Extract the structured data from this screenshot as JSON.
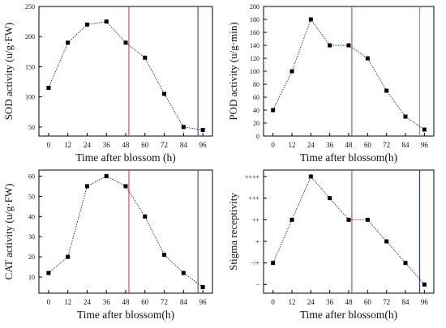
{
  "chart_data": [
    {
      "type": "line",
      "panel": "top-left",
      "x": [
        0,
        12,
        24,
        36,
        48,
        60,
        72,
        84,
        96
      ],
      "values": [
        115,
        190,
        220,
        225,
        190,
        165,
        105,
        50,
        45
      ],
      "xlim": [
        -6,
        102
      ],
      "ylim": [
        35,
        250
      ],
      "xticks": [
        0,
        12,
        24,
        36,
        48,
        60,
        72,
        84,
        96
      ],
      "yticks": [
        50,
        100,
        150,
        200,
        250
      ],
      "ytick_labels": [
        "50",
        "100",
        "150",
        "200",
        "250"
      ],
      "xlabel": "Time after  blossom (h)",
      "ylabel": "SOD activity (u/g·FW)",
      "vlines": [
        {
          "x": 50,
          "color": "#e34a4a"
        },
        {
          "x": 93,
          "color": "#3a4fcf"
        }
      ],
      "marker": "square",
      "line_style": "dotted",
      "grid": false
    },
    {
      "type": "line",
      "panel": "top-right",
      "x": [
        0,
        12,
        24,
        36,
        48,
        60,
        72,
        84,
        96
      ],
      "values": [
        40,
        100,
        180,
        140,
        140,
        120,
        70,
        30,
        10
      ],
      "xlim": [
        -6,
        102
      ],
      "ylim": [
        0,
        200
      ],
      "xticks": [
        0,
        12,
        24,
        36,
        48,
        60,
        72,
        84,
        96
      ],
      "yticks": [
        0,
        20,
        40,
        60,
        80,
        100,
        120,
        140,
        160,
        180,
        200
      ],
      "ytick_labels": [
        "0",
        "20",
        "40",
        "60",
        "80",
        "100",
        "120",
        "140",
        "160",
        "180",
        "200"
      ],
      "xlabel": "Time after blossom(h)",
      "ylabel": "POD activity (u/g·min)",
      "vlines": [
        {
          "x": 50,
          "color": "#e34a4a"
        },
        {
          "x": 93,
          "color": "#8b92d8"
        }
      ],
      "marker": "square",
      "line_style": "dotted",
      "grid": false
    },
    {
      "type": "line",
      "panel": "bottom-left",
      "x": [
        0,
        12,
        24,
        36,
        48,
        60,
        72,
        84,
        96
      ],
      "values": [
        12,
        20,
        55,
        60,
        55,
        40,
        21,
        12,
        5
      ],
      "xlim": [
        -6,
        102
      ],
      "ylim": [
        2,
        63
      ],
      "xticks": [
        0,
        12,
        24,
        36,
        48,
        60,
        72,
        84,
        96
      ],
      "yticks": [
        10,
        20,
        30,
        40,
        50,
        60
      ],
      "ytick_labels": [
        "10",
        "20",
        "30",
        "40",
        "50",
        "60"
      ],
      "xlabel": "Time after blossom(h)",
      "ylabel": "CAT activity (u/g·FW)",
      "vlines": [
        {
          "x": 50,
          "color": "#e34a4a"
        },
        {
          "x": 93,
          "color": "#3a4fcf"
        }
      ],
      "marker": "square",
      "line_style": "dotted",
      "grid": false
    },
    {
      "type": "line",
      "panel": "bottom-right",
      "x": [
        0,
        12,
        24,
        36,
        48,
        60,
        72,
        84,
        96
      ],
      "values": [
        1,
        3,
        5,
        4,
        3,
        3,
        2,
        1,
        0
      ],
      "xlim": [
        -6,
        102
      ],
      "ylim": [
        -0.4,
        5.3
      ],
      "xticks": [
        0,
        12,
        24,
        36,
        48,
        60,
        72,
        84,
        96
      ],
      "yticks": [
        0,
        1,
        2,
        3,
        4,
        5
      ],
      "ytick_labels": [
        "−",
        "−/+",
        "+",
        "++",
        "+++",
        "++++"
      ],
      "xlabel": "Time after blossom(h)",
      "ylabel": "Stigma receptivity",
      "vlines": [
        {
          "x": 50,
          "color": "#e34a4a"
        },
        {
          "x": 93,
          "color": "#2a36b8"
        }
      ],
      "marker": "square",
      "line_style": "dotted",
      "grid": false
    }
  ]
}
